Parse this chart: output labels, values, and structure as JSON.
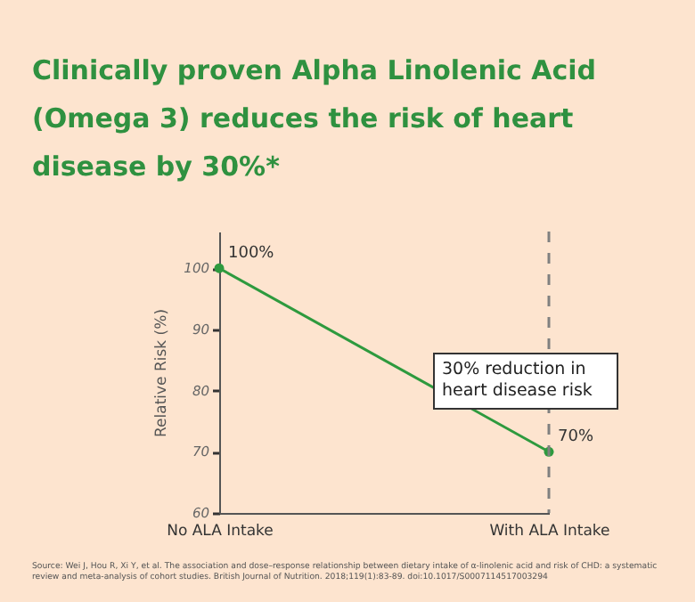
{
  "chart_data": {
    "type": "line",
    "title": "Clinically proven Alpha Linolenic Acid (Omega 3) reduces the risk of heart disease by 30%*",
    "ylabel": "Relative Risk (%)",
    "categories": [
      "No ALA Intake",
      "With ALA Intake"
    ],
    "values": [
      100,
      70
    ],
    "value_labels": [
      "100%",
      "70%"
    ],
    "color": "#2e9a3e",
    "ylim": [
      60,
      106
    ],
    "yticks": [
      60,
      70,
      80,
      90,
      100
    ],
    "marker": "circle",
    "ref_lines": [
      {
        "axis": "x",
        "value": "With ALA Intake",
        "color": "#808080",
        "line_style": "dashed"
      }
    ],
    "annotations": [
      "30% reduction in heart disease risk",
      "Source: Wei J, Hou R, Xi Y, et al. The association and dose–response relationship between dietary intake of α-linolenic acid and risk of CHD: a systematic review and meta-analysis of cohort studies. British Journal of Nutrition. 2018;119(1):83-89. doi:10.1017/S0007114517003294"
    ]
  }
}
